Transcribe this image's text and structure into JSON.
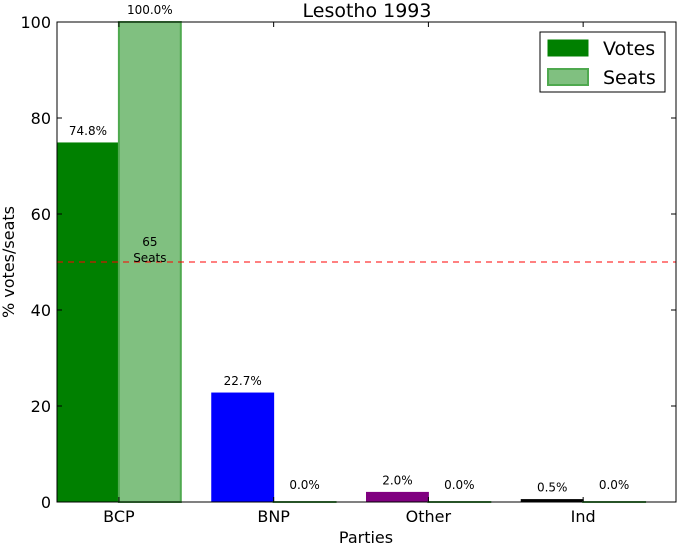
{
  "chart_data": {
    "type": "bar",
    "title": "Lesotho 1993",
    "xlabel": "Parties",
    "ylabel": "% votes/seats",
    "ylim": [
      0,
      100
    ],
    "yticks": [
      0,
      20,
      40,
      60,
      80,
      100
    ],
    "categories": [
      "BCP",
      "BNP",
      "Other",
      "Ind"
    ],
    "series": [
      {
        "name": "Votes",
        "values": [
          74.8,
          22.7,
          2.0,
          0.5
        ],
        "labels": [
          "74.8%",
          "22.7%",
          "2.0%",
          "0.5%"
        ],
        "colors": [
          "#008000",
          "#0000ff",
          "#800080",
          "#000000"
        ]
      },
      {
        "name": "Seats",
        "values": [
          100.0,
          0.0,
          0.0,
          0.0
        ],
        "labels": [
          "100.0%",
          "0.0%",
          "0.0%",
          "0.0%"
        ],
        "color": "#80c080",
        "edge_color": "#4fa94f"
      }
    ],
    "majority_line": {
      "value": 50,
      "color": "#ff0000",
      "label_lines": [
        "65",
        "Seats"
      ]
    },
    "legend": {
      "position": "top-right",
      "vote_color": "#008000",
      "seat_color": "#80c080",
      "seat_edge": "#4fa94f"
    },
    "grid": false
  }
}
